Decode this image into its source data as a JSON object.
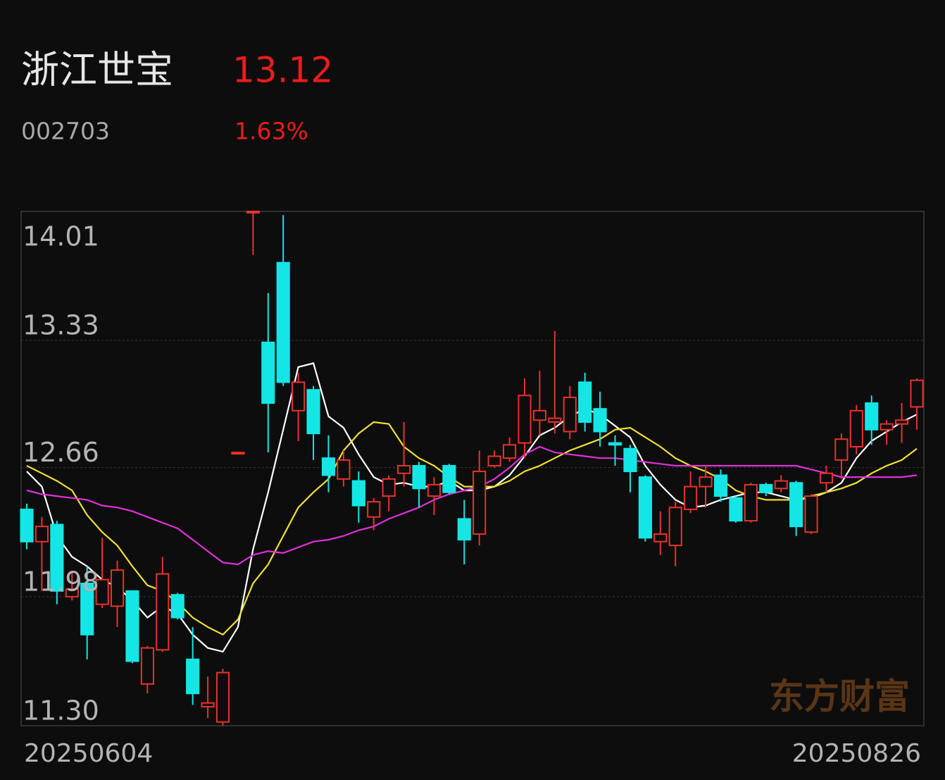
{
  "quote": {
    "name": "浙江世宝",
    "code": "002703",
    "price": "13.12",
    "change": "1.63%"
  },
  "watermark": "东方财富",
  "chart_data": {
    "type": "candlestick",
    "categories": [
      "20250604",
      null,
      null,
      null,
      null,
      null,
      null,
      null,
      null,
      null,
      null,
      null,
      null,
      null,
      null,
      null,
      null,
      null,
      null,
      null,
      null,
      null,
      null,
      null,
      null,
      null,
      null,
      null,
      null,
      null,
      null,
      null,
      null,
      null,
      null,
      null,
      null,
      null,
      null,
      null,
      null,
      null,
      null,
      null,
      null,
      null,
      null,
      null,
      null,
      null,
      null,
      null,
      null,
      null,
      null,
      null,
      null,
      null,
      null,
      "20250826"
    ],
    "open": [
      12.44,
      12.27,
      12.36,
      11.98,
      12.05,
      11.94,
      11.93,
      12.01,
      11.52,
      11.7,
      11.99,
      11.65,
      11.4,
      11.32,
      12.74,
      14.01,
      13.32,
      13.74,
      12.96,
      13.07,
      12.71,
      12.6,
      12.59,
      12.4,
      12.51,
      12.63,
      12.67,
      12.51,
      12.67,
      12.39,
      12.31,
      12.67,
      12.71,
      12.79,
      12.91,
      12.9,
      12.85,
      13.11,
      12.97,
      12.79,
      12.76,
      12.61,
      12.27,
      12.25,
      12.44,
      12.56,
      12.62,
      12.5,
      12.38,
      12.57,
      12.55,
      12.58,
      12.32,
      12.58,
      12.7,
      12.77,
      13.0,
      12.86,
      12.89,
      12.98
    ],
    "high": [
      12.47,
      12.4,
      12.38,
      12.11,
      12.14,
      12.29,
      12.17,
      12.01,
      11.72,
      12.19,
      12.0,
      11.82,
      11.56,
      11.6,
      12.74,
      14.01,
      13.58,
      13.99,
      13.16,
      13.09,
      12.83,
      12.75,
      12.64,
      12.5,
      12.62,
      12.9,
      12.69,
      12.61,
      12.68,
      12.49,
      12.75,
      12.75,
      12.82,
      13.13,
      13.17,
      13.38,
      13.09,
      13.16,
      13.06,
      12.83,
      12.78,
      12.62,
      12.43,
      12.48,
      12.64,
      12.67,
      12.65,
      12.51,
      12.58,
      12.58,
      12.62,
      12.59,
      12.52,
      12.67,
      12.84,
      12.99,
      13.04,
      12.91,
      13.0,
      13.13
    ],
    "low": [
      12.23,
      12.01,
      11.94,
      11.96,
      11.65,
      11.92,
      11.82,
      11.63,
      11.47,
      11.69,
      11.86,
      11.41,
      11.34,
      11.3,
      12.74,
      13.78,
      12.74,
      13.09,
      12.8,
      12.7,
      12.53,
      12.56,
      12.37,
      12.33,
      12.43,
      12.56,
      12.45,
      12.41,
      12.52,
      12.15,
      12.25,
      12.66,
      12.69,
      12.71,
      12.83,
      12.84,
      12.81,
      12.85,
      12.77,
      12.67,
      12.53,
      12.27,
      12.2,
      12.14,
      12.42,
      12.45,
      12.48,
      12.37,
      12.37,
      12.51,
      12.53,
      12.3,
      12.31,
      12.53,
      12.6,
      12.73,
      12.78,
      12.78,
      12.79,
      12.86
    ],
    "close": [
      12.27,
      12.35,
      12.01,
      12.02,
      11.78,
      12.07,
      12.12,
      11.64,
      11.71,
      12.1,
      11.87,
      11.47,
      11.42,
      11.58,
      12.74,
      14.01,
      13.0,
      13.11,
      13.11,
      12.84,
      12.62,
      12.7,
      12.46,
      12.48,
      12.6,
      12.67,
      12.55,
      12.57,
      12.53,
      12.28,
      12.64,
      12.72,
      12.78,
      13.04,
      12.96,
      12.92,
      13.03,
      12.9,
      12.85,
      12.78,
      12.64,
      12.29,
      12.31,
      12.45,
      12.56,
      12.61,
      12.51,
      12.38,
      12.57,
      12.53,
      12.59,
      12.35,
      12.51,
      12.63,
      12.81,
      12.96,
      12.86,
      12.89,
      12.91,
      13.12
    ],
    "up_color": "#e8322c",
    "down_color": "#14e6e6",
    "lines": [
      {
        "color": "#ffffff",
        "values": [
          12.64,
          12.56,
          12.3,
          12.19,
          12.14,
          12.07,
          12.03,
          11.96,
          11.87,
          11.93,
          11.89,
          11.78,
          11.71,
          11.69,
          11.82,
          12.23,
          12.53,
          12.86,
          13.19,
          13.21,
          12.93,
          12.87,
          12.73,
          12.61,
          12.57,
          12.58,
          12.56,
          12.56,
          12.59,
          12.54,
          12.54,
          12.56,
          12.62,
          12.72,
          12.83,
          12.87,
          12.93,
          12.97,
          12.94,
          12.88,
          12.82,
          12.67,
          12.57,
          12.49,
          12.45,
          12.46,
          12.49,
          12.51,
          12.53,
          12.53,
          12.51,
          12.49,
          12.5,
          12.53,
          12.58,
          12.71,
          12.8,
          12.85,
          12.9,
          12.94
        ]
      },
      {
        "color": "#f0e030",
        "values": [
          12.67,
          12.63,
          12.59,
          12.54,
          12.41,
          12.32,
          12.25,
          12.14,
          12.04,
          12.01,
          11.95,
          11.87,
          11.82,
          11.78,
          11.86,
          12.05,
          12.15,
          12.3,
          12.45,
          12.53,
          12.6,
          12.75,
          12.84,
          12.9,
          12.89,
          12.77,
          12.71,
          12.67,
          12.61,
          12.56,
          12.56,
          12.56,
          12.59,
          12.64,
          12.67,
          12.71,
          12.75,
          12.78,
          12.81,
          12.86,
          12.87,
          12.82,
          12.77,
          12.71,
          12.67,
          12.64,
          12.6,
          12.54,
          12.51,
          12.49,
          12.49,
          12.49,
          12.51,
          12.53,
          12.55,
          12.58,
          12.63,
          12.67,
          12.7,
          12.76
        ]
      },
      {
        "color": "#e030d8",
        "values": [
          12.54,
          12.52,
          12.51,
          12.5,
          12.49,
          12.46,
          12.45,
          12.43,
          12.4,
          12.37,
          12.34,
          12.28,
          12.22,
          12.16,
          12.15,
          12.2,
          12.22,
          12.21,
          12.24,
          12.27,
          12.28,
          12.3,
          12.33,
          12.35,
          12.39,
          12.42,
          12.45,
          12.49,
          12.52,
          12.54,
          12.56,
          12.6,
          12.66,
          12.73,
          12.77,
          12.74,
          12.73,
          12.72,
          12.71,
          12.71,
          12.7,
          12.69,
          12.68,
          12.67,
          12.67,
          12.67,
          12.67,
          12.67,
          12.67,
          12.67,
          12.67,
          12.67,
          12.65,
          12.63,
          12.61,
          12.61,
          12.61,
          12.61,
          12.61,
          12.62
        ]
      }
    ],
    "ylim": [
      11.3,
      14.01
    ],
    "yticks": [
      {
        "value": 11.3,
        "label": "11.30"
      },
      11.98,
      12.66,
      13.33,
      14.01
    ],
    "grid": true
  }
}
